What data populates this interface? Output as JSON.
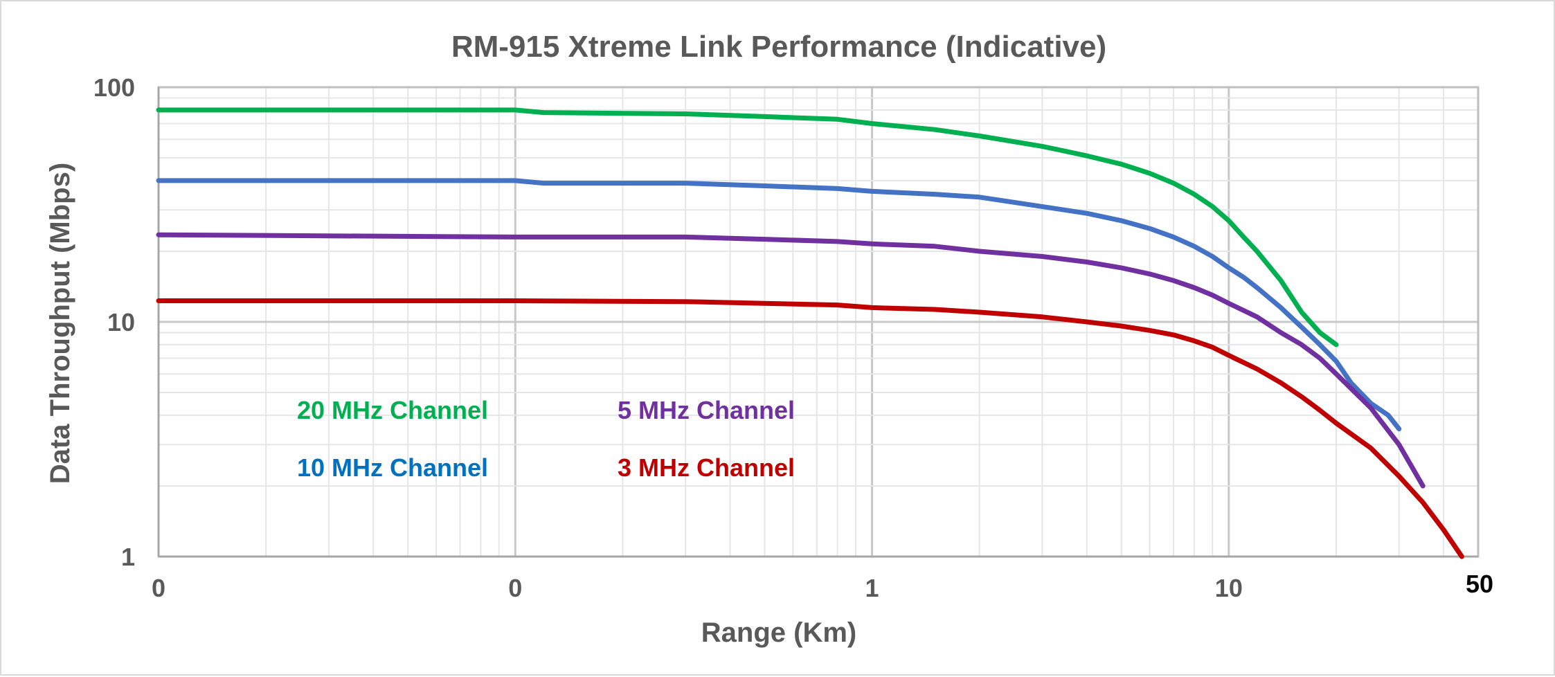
{
  "chart_data": {
    "type": "line",
    "title": "RM-915 Xtreme Link Performance (Indicative)",
    "xlabel": "Range (Km)",
    "ylabel": "Data Throughput (Mbps)",
    "x_scale": "log",
    "y_scale": "log",
    "xlim": [
      0.01,
      50
    ],
    "ylim": [
      1,
      100
    ],
    "x_ticks": [
      {
        "value": 0.01,
        "label": "0"
      },
      {
        "value": 0.1,
        "label": "0"
      },
      {
        "value": 1,
        "label": "1"
      },
      {
        "value": 10,
        "label": "10"
      },
      {
        "value": 50,
        "label": "50"
      }
    ],
    "y_ticks": [
      {
        "value": 1,
        "label": "1"
      },
      {
        "value": 10,
        "label": "10"
      },
      {
        "value": 100,
        "label": "100"
      }
    ],
    "grid": true,
    "legend": "inside-left",
    "series": [
      {
        "name": "20 MHz Channel",
        "color": "#00b050",
        "x": [
          0.01,
          0.1,
          0.12,
          0.3,
          0.5,
          0.8,
          1,
          1.5,
          2,
          3,
          4,
          5,
          6,
          7,
          8,
          9,
          10,
          11,
          12,
          14,
          16,
          18,
          20
        ],
        "y": [
          80,
          80,
          78,
          77,
          75,
          73,
          70,
          66,
          62,
          56,
          51,
          47,
          43,
          39,
          35,
          31,
          27,
          23,
          20,
          15,
          11,
          9,
          8
        ]
      },
      {
        "name": "10 MHz Channel",
        "color": "#4472c4",
        "x": [
          0.01,
          0.1,
          0.12,
          0.3,
          0.5,
          0.8,
          1,
          1.5,
          2,
          3,
          4,
          5,
          6,
          7,
          8,
          9,
          10,
          11,
          12,
          14,
          16,
          18,
          20,
          22,
          25,
          28,
          30
        ],
        "y": [
          40,
          40,
          39,
          39,
          38,
          37,
          36,
          35,
          34,
          31,
          29,
          27,
          25,
          23,
          21,
          19,
          17,
          15.5,
          14,
          11.5,
          9.5,
          8,
          6.8,
          5.5,
          4.5,
          4,
          3.5
        ]
      },
      {
        "name": "5 MHz Channel",
        "color": "#7030a0",
        "x": [
          0.01,
          0.1,
          0.3,
          0.5,
          0.8,
          1,
          1.5,
          2,
          3,
          4,
          5,
          6,
          7,
          8,
          9,
          10,
          12,
          14,
          16,
          18,
          20,
          25,
          30,
          35
        ],
        "y": [
          23.5,
          23,
          23,
          22.5,
          22,
          21.5,
          21,
          20,
          19,
          18,
          17,
          16,
          15,
          14,
          13,
          12,
          10.5,
          9,
          8,
          7,
          6,
          4.3,
          3,
          2
        ]
      },
      {
        "name": "3 MHz Channel",
        "color": "#c00000",
        "x": [
          0.01,
          0.1,
          0.3,
          0.5,
          0.8,
          1,
          1.5,
          2,
          3,
          4,
          5,
          6,
          7,
          8,
          9,
          10,
          12,
          14,
          16,
          18,
          20,
          25,
          30,
          35,
          40,
          45
        ],
        "y": [
          12.3,
          12.3,
          12.2,
          12,
          11.8,
          11.5,
          11.3,
          11,
          10.5,
          10,
          9.6,
          9.2,
          8.8,
          8.3,
          7.8,
          7.2,
          6.3,
          5.5,
          4.8,
          4.2,
          3.7,
          2.9,
          2.2,
          1.7,
          1.3,
          1
        ]
      }
    ]
  }
}
